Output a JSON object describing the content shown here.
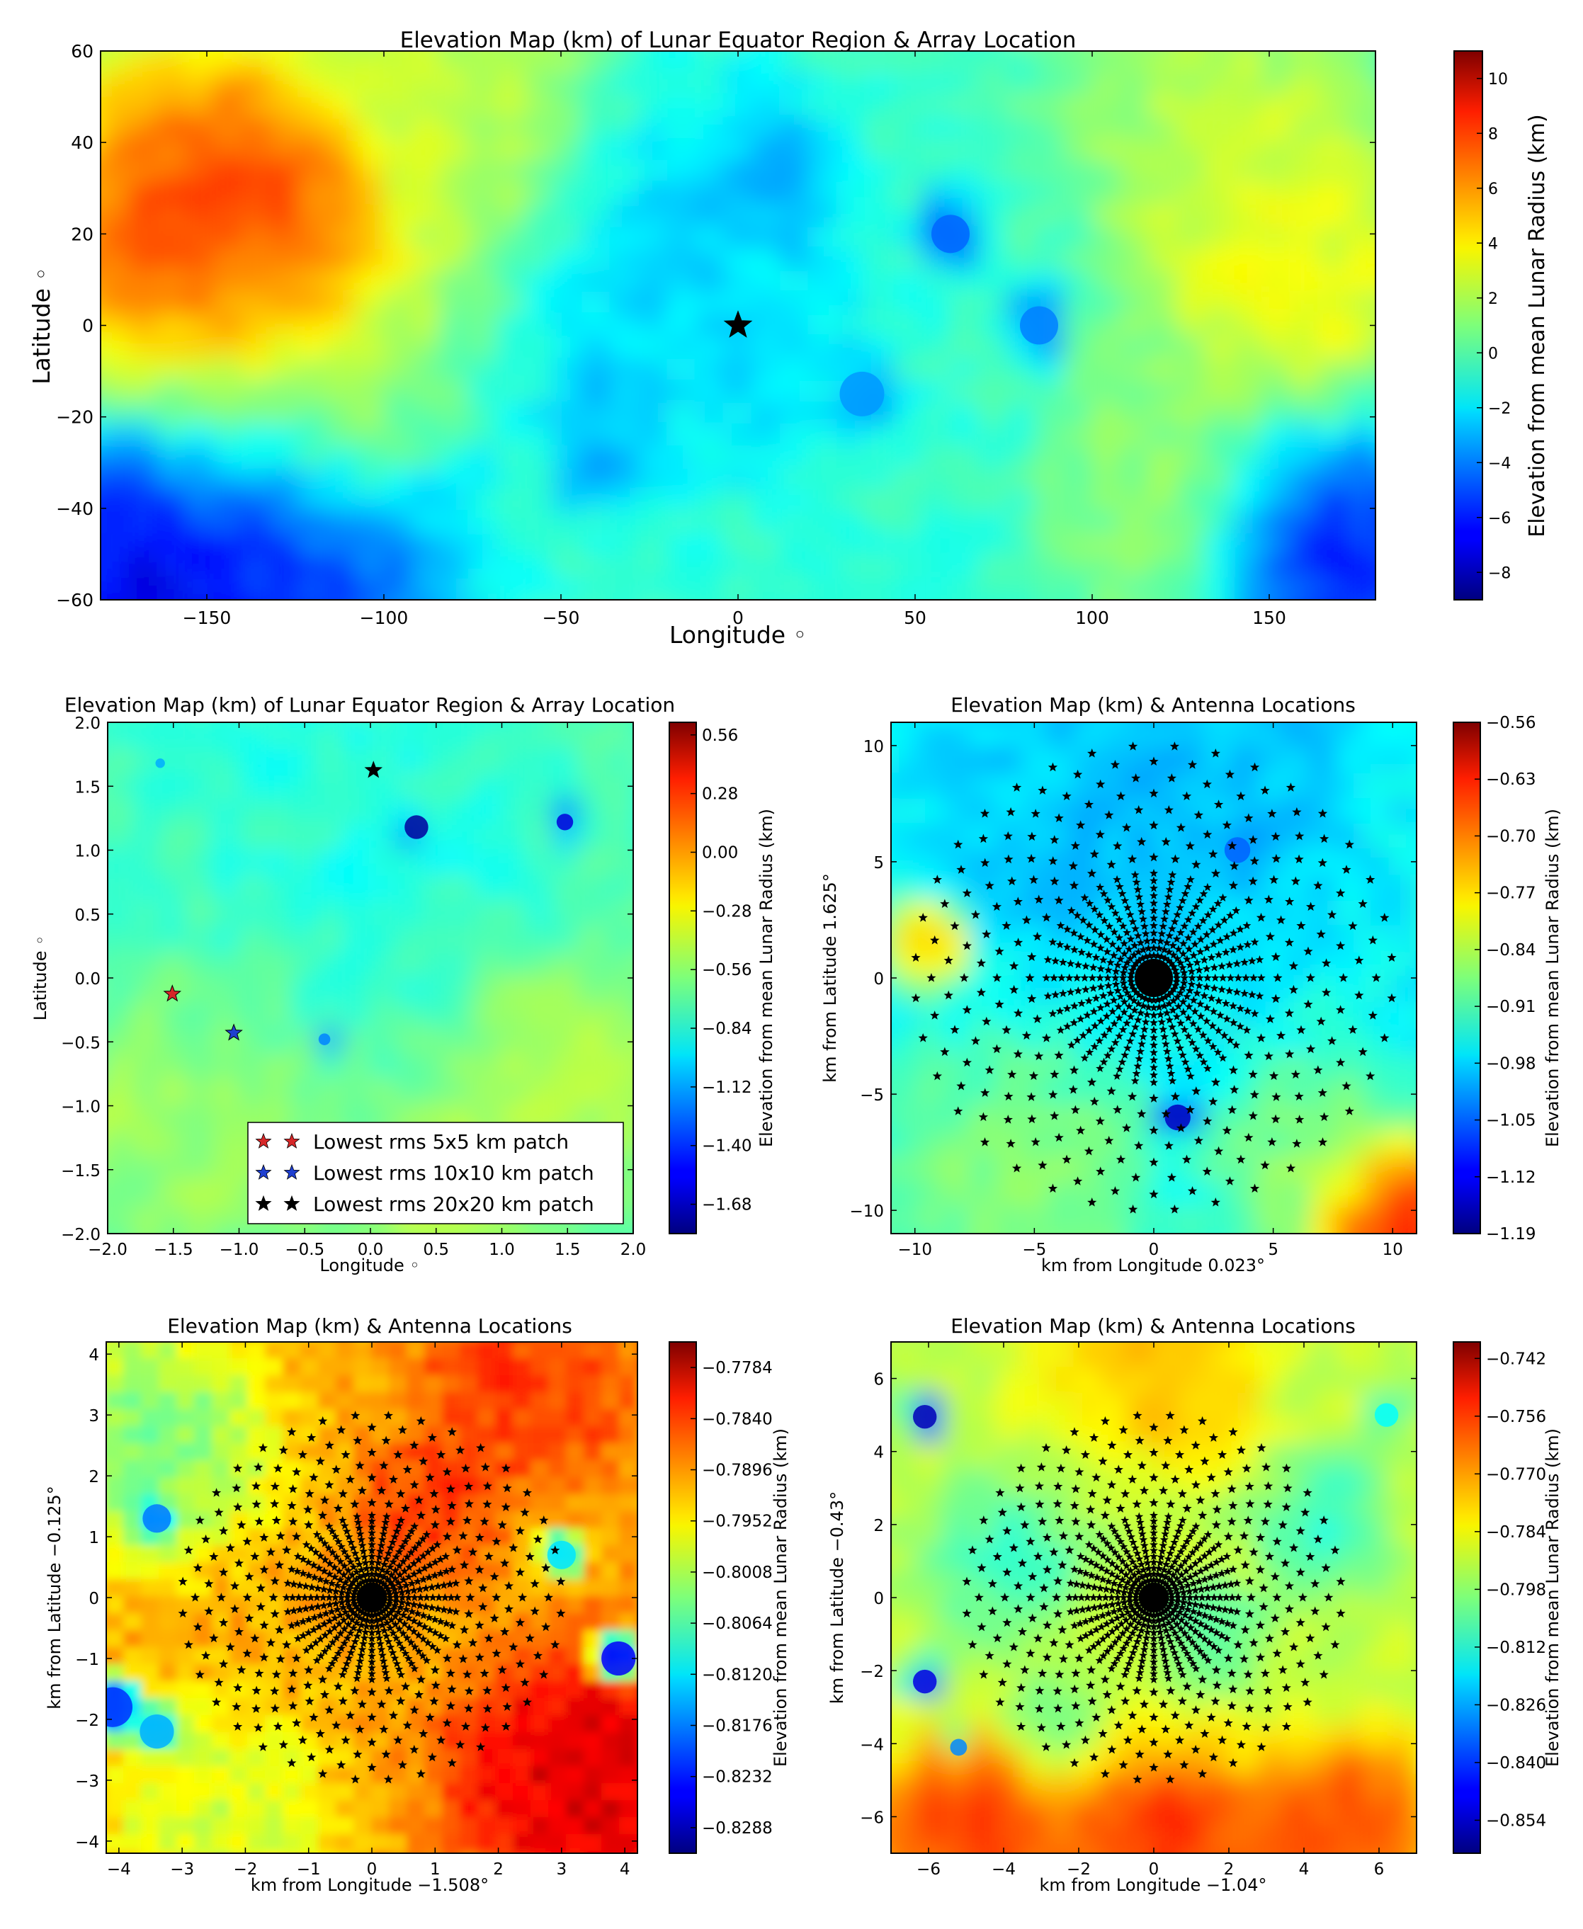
{
  "chart_data": [
    {
      "type": "heatmap",
      "id": "main",
      "title": "Elevation Map (km) of Lunar Equator Region & Array Location",
      "xlabel": "Longitude ◦",
      "ylabel": "Latitude ◦",
      "xlim": [
        -180,
        180
      ],
      "ylim": [
        -60,
        60
      ],
      "xticks": [
        -150,
        -100,
        -50,
        0,
        50,
        100,
        150
      ],
      "xtick_labels": [
        "−150",
        "−100",
        "−50",
        "0",
        "50",
        "100",
        "150"
      ],
      "yticks": [
        -60,
        -40,
        -20,
        0,
        20,
        40,
        60
      ],
      "ytick_labels": [
        "−60",
        "−40",
        "−20",
        "0",
        "20",
        "40",
        "60"
      ],
      "colorbar": {
        "label": "Elevation from mean Lunar Radius (km)",
        "min": -9,
        "max": 11,
        "ticks": [
          10,
          8,
          6,
          4,
          2,
          0,
          -2,
          -4,
          -6,
          -8
        ],
        "tick_labels": [
          "10",
          "8",
          "6",
          "4",
          "2",
          "0",
          "−2",
          "−4",
          "−6",
          "−8"
        ]
      },
      "markers": [
        {
          "x": 0,
          "y": 0,
          "color": "#000000",
          "marker": "star"
        }
      ],
      "blobs": [
        {
          "x": -150,
          "y": 5,
          "v": 9.5,
          "r": 38
        },
        {
          "x": -125,
          "y": 25,
          "v": 7,
          "r": 20
        },
        {
          "x": -145,
          "y": -45,
          "v": -7.5,
          "r": 40
        },
        {
          "x": -170,
          "y": -50,
          "v": -8,
          "r": 25
        },
        {
          "x": 165,
          "y": -45,
          "v": -7,
          "r": 25
        },
        {
          "x": 145,
          "y": 30,
          "v": 3.5,
          "r": 25
        },
        {
          "x": 160,
          "y": 0,
          "v": 4,
          "r": 25
        },
        {
          "x": -110,
          "y": -15,
          "v": 2,
          "r": 20
        },
        {
          "x": 10,
          "y": 35,
          "v": -3.5,
          "r": 10
        },
        {
          "x": 60,
          "y": 20,
          "v": -4.5,
          "r": 6
        },
        {
          "x": 85,
          "y": 0,
          "v": -4,
          "r": 6
        },
        {
          "x": 35,
          "y": -15,
          "v": -3.5,
          "r": 7
        },
        {
          "x": -40,
          "y": -25,
          "v": -3.5,
          "r": 10
        },
        {
          "x": -80,
          "y": 55,
          "v": 2.5,
          "r": 30
        },
        {
          "x": 130,
          "y": 55,
          "v": 2,
          "r": 30
        },
        {
          "x": 125,
          "y": -35,
          "v": 1.5,
          "r": 25
        },
        {
          "x": -10,
          "y": 10,
          "v": -2.5,
          "r": 30
        }
      ],
      "base_value": -0.5
    },
    {
      "type": "heatmap",
      "id": "zoom",
      "title": "Elevation Map (km) of Lunar Equator Region & Array Location",
      "xlabel": "Longitude ◦",
      "ylabel": "Latitude ◦",
      "xlim": [
        -2.0,
        2.0
      ],
      "ylim": [
        -2.0,
        2.0
      ],
      "xticks": [
        -2.0,
        -1.5,
        -1.0,
        -0.5,
        0.0,
        0.5,
        1.0,
        1.5,
        2.0
      ],
      "xtick_labels": [
        "−2.0",
        "−1.5",
        "−1.0",
        "−0.5",
        "0.0",
        "0.5",
        "1.0",
        "1.5",
        "2.0"
      ],
      "yticks": [
        -2.0,
        -1.5,
        -1.0,
        -0.5,
        0.0,
        0.5,
        1.0,
        1.5,
        2.0
      ],
      "ytick_labels": [
        "−2.0",
        "−1.5",
        "−1.0",
        "−0.5",
        "0.0",
        "0.5",
        "1.0",
        "1.5",
        "2.0"
      ],
      "colorbar": {
        "label": "Elevation from mean Lunar Radius (km)",
        "min": -1.82,
        "max": 0.62,
        "ticks": [
          0.56,
          0.28,
          0.0,
          -0.28,
          -0.56,
          -0.84,
          -1.12,
          -1.4,
          -1.68
        ],
        "tick_labels": [
          "0.56",
          "0.28",
          "0.00",
          "−0.28",
          "−0.56",
          "−0.84",
          "−1.12",
          "−1.40",
          "−1.68"
        ]
      },
      "markers": [
        {
          "x": -1.508,
          "y": -0.125,
          "color": "#d62728",
          "marker": "star"
        },
        {
          "x": -1.04,
          "y": -0.43,
          "color": "#1f3fd0",
          "marker": "star"
        },
        {
          "x": 0.023,
          "y": 1.625,
          "color": "#000000",
          "marker": "star"
        }
      ],
      "legend": [
        {
          "label": "Lowest rms 5x5 km patch",
          "color": "#d62728"
        },
        {
          "label": "Lowest rms 10x10 km patch",
          "color": "#1f3fd0"
        },
        {
          "label": "Lowest rms 20x20 km patch",
          "color": "#000000"
        }
      ],
      "blobs": [
        {
          "x": 0.35,
          "y": 1.18,
          "v": -1.75,
          "r": 0.1
        },
        {
          "x": 1.48,
          "y": 1.22,
          "v": -1.6,
          "r": 0.07
        },
        {
          "x": -0.35,
          "y": -0.48,
          "v": -1.2,
          "r": 0.05
        },
        {
          "x": -1.6,
          "y": 1.68,
          "v": -1.1,
          "r": 0.04
        },
        {
          "x": 0.5,
          "y": -1.8,
          "v": -0.45,
          "r": 0.6
        },
        {
          "x": -1.5,
          "y": -1.2,
          "v": -0.5,
          "r": 0.7
        },
        {
          "x": 1.5,
          "y": -0.8,
          "v": -0.45,
          "r": 0.6
        },
        {
          "x": 0.0,
          "y": 1.5,
          "v": -0.85,
          "r": 1.0
        }
      ],
      "base_value": -0.72
    },
    {
      "type": "heatmap",
      "id": "k20",
      "title": "Elevation Map (km) & Antenna Locations",
      "xlabel": "km from Longitude 0.023°",
      "ylabel": "km from Latitude 1.625°",
      "xlim": [
        -11,
        11
      ],
      "ylim": [
        -11,
        11
      ],
      "xticks": [
        -10,
        -5,
        0,
        5,
        10
      ],
      "xtick_labels": [
        "−10",
        "−5",
        "0",
        "5",
        "10"
      ],
      "yticks": [
        -10,
        -5,
        0,
        5,
        10
      ],
      "ytick_labels": [
        "−10",
        "−5",
        "0",
        "5",
        "10"
      ],
      "colorbar": {
        "label": "Elevation from mean Lunar Radius (km)",
        "min": -1.19,
        "max": -0.56,
        "ticks": [
          -0.56,
          -0.63,
          -0.7,
          -0.77,
          -0.84,
          -0.91,
          -0.98,
          -1.05,
          -1.12,
          -1.19
        ],
        "tick_labels": [
          "−0.56",
          "−0.63",
          "−0.70",
          "−0.77",
          "−0.84",
          "−0.91",
          "−0.98",
          "−1.05",
          "−1.12",
          "−1.19"
        ]
      },
      "array": {
        "arms": 36,
        "radius": 10,
        "points_per_arm": 8
      },
      "blobs": [
        {
          "x": -9.5,
          "y": 1.5,
          "v": -0.72,
          "r": 1.2
        },
        {
          "x": 10,
          "y": -10.5,
          "v": -0.6,
          "r": 2.5
        },
        {
          "x": 1.0,
          "y": -6.0,
          "v": -1.15,
          "r": 0.6
        },
        {
          "x": 3.5,
          "y": 5.5,
          "v": -1.05,
          "r": 0.6
        },
        {
          "x": 0,
          "y": 9,
          "v": -1.0,
          "r": 6
        },
        {
          "x": -6,
          "y": -9,
          "v": -0.86,
          "r": 4
        },
        {
          "x": 7,
          "y": -8,
          "v": -0.86,
          "r": 3
        }
      ],
      "base_value": -0.95
    },
    {
      "type": "heatmap",
      "id": "k5",
      "title": "Elevation Map (km) & Antenna Locations",
      "xlabel": "km from Longitude −1.508°",
      "ylabel": "km from Latitude −0.125°",
      "xlim": [
        -4.2,
        4.2
      ],
      "ylim": [
        -4.2,
        4.2
      ],
      "xticks": [
        -4,
        -3,
        -2,
        -1,
        0,
        1,
        2,
        3,
        4
      ],
      "xtick_labels": [
        "−4",
        "−3",
        "−2",
        "−1",
        "0",
        "1",
        "2",
        "3",
        "4"
      ],
      "yticks": [
        -4,
        -3,
        -2,
        -1,
        0,
        1,
        2,
        3,
        4
      ],
      "ytick_labels": [
        "−4",
        "−3",
        "−2",
        "−1",
        "0",
        "1",
        "2",
        "3",
        "4"
      ],
      "colorbar": {
        "label": "Elevation from mean Lunar Radius (km)",
        "min": -0.8316,
        "max": -0.7756,
        "ticks": [
          -0.7784,
          -0.784,
          -0.7896,
          -0.7952,
          -0.8008,
          -0.8064,
          -0.812,
          -0.8176,
          -0.8232,
          -0.8288
        ],
        "tick_labels": [
          "−0.7784",
          "−0.7840",
          "−0.7896",
          "−0.7952",
          "−0.8008",
          "−0.8064",
          "−0.8120",
          "−0.8176",
          "−0.8232",
          "−0.8288"
        ]
      },
      "array": {
        "arms": 36,
        "radius": 3,
        "points_per_arm": 8
      },
      "blobs": [
        {
          "x": 3.5,
          "y": -3.0,
          "v": -0.779,
          "r": 1.5
        },
        {
          "x": 2.5,
          "y": 3.5,
          "v": -0.785,
          "r": 1.2
        },
        {
          "x": -3.5,
          "y": 2.5,
          "v": -0.805,
          "r": 1.3
        },
        {
          "x": -2.5,
          "y": -3.5,
          "v": -0.8,
          "r": 1.2
        },
        {
          "x": 3.9,
          "y": -1.0,
          "v": -0.825,
          "r": 0.3
        },
        {
          "x": -4.1,
          "y": -1.8,
          "v": -0.822,
          "r": 0.35
        },
        {
          "x": -3.4,
          "y": 1.3,
          "v": -0.818,
          "r": 0.25
        },
        {
          "x": -3.4,
          "y": -2.2,
          "v": -0.815,
          "r": 0.3
        },
        {
          "x": 3.0,
          "y": 0.7,
          "v": -0.812,
          "r": 0.25
        },
        {
          "x": 1.0,
          "y": 1.5,
          "v": -0.785,
          "r": 0.8
        }
      ],
      "base_value": -0.792
    },
    {
      "type": "heatmap",
      "id": "k10",
      "title": "Elevation Map (km) & Antenna Locations",
      "xlabel": "km from Longitude −1.04°",
      "ylabel": "km from Latitude −0.43°",
      "xlim": [
        -7,
        7
      ],
      "ylim": [
        -7,
        7
      ],
      "xticks": [
        -6,
        -4,
        -2,
        0,
        2,
        4,
        6
      ],
      "xtick_labels": [
        "−6",
        "−4",
        "−2",
        "0",
        "2",
        "4",
        "6"
      ],
      "yticks": [
        -6,
        -4,
        -2,
        0,
        2,
        4,
        6
      ],
      "ytick_labels": [
        "−6",
        "−4",
        "−2",
        "0",
        "2",
        "4",
        "6"
      ],
      "colorbar": {
        "label": "Elevation from mean Lunar Radius (km)",
        "min": -0.862,
        "max": -0.738,
        "ticks": [
          -0.742,
          -0.756,
          -0.77,
          -0.784,
          -0.798,
          -0.812,
          -0.826,
          -0.84,
          -0.854
        ],
        "tick_labels": [
          "−0.742",
          "−0.756",
          "−0.770",
          "−0.784",
          "−0.798",
          "−0.812",
          "−0.826",
          "−0.840",
          "−0.854"
        ]
      },
      "array": {
        "arms": 36,
        "radius": 5,
        "points_per_arm": 8
      },
      "blobs": [
        {
          "x": 0,
          "y": -6.8,
          "v": -0.755,
          "r": 2.0
        },
        {
          "x": -5,
          "y": -6.5,
          "v": -0.757,
          "r": 1.8
        },
        {
          "x": 5,
          "y": -6.5,
          "v": -0.757,
          "r": 1.8
        },
        {
          "x": 0,
          "y": 6.5,
          "v": -0.775,
          "r": 2.0
        },
        {
          "x": -6.1,
          "y": 4.95,
          "v": -0.855,
          "r": 0.35
        },
        {
          "x": -6.1,
          "y": -2.3,
          "v": -0.85,
          "r": 0.35
        },
        {
          "x": -5.2,
          "y": -4.1,
          "v": -0.83,
          "r": 0.25
        },
        {
          "x": -4.0,
          "y": 1.0,
          "v": -0.81,
          "r": 1.4
        },
        {
          "x": 4.5,
          "y": 2.0,
          "v": -0.812,
          "r": 1.2
        },
        {
          "x": 1.5,
          "y": -1.0,
          "v": -0.808,
          "r": 1.0
        },
        {
          "x": -2.5,
          "y": -3.5,
          "v": -0.805,
          "r": 1.0
        },
        {
          "x": 6.2,
          "y": 5.0,
          "v": -0.815,
          "r": 0.35
        }
      ],
      "base_value": -0.792
    }
  ]
}
